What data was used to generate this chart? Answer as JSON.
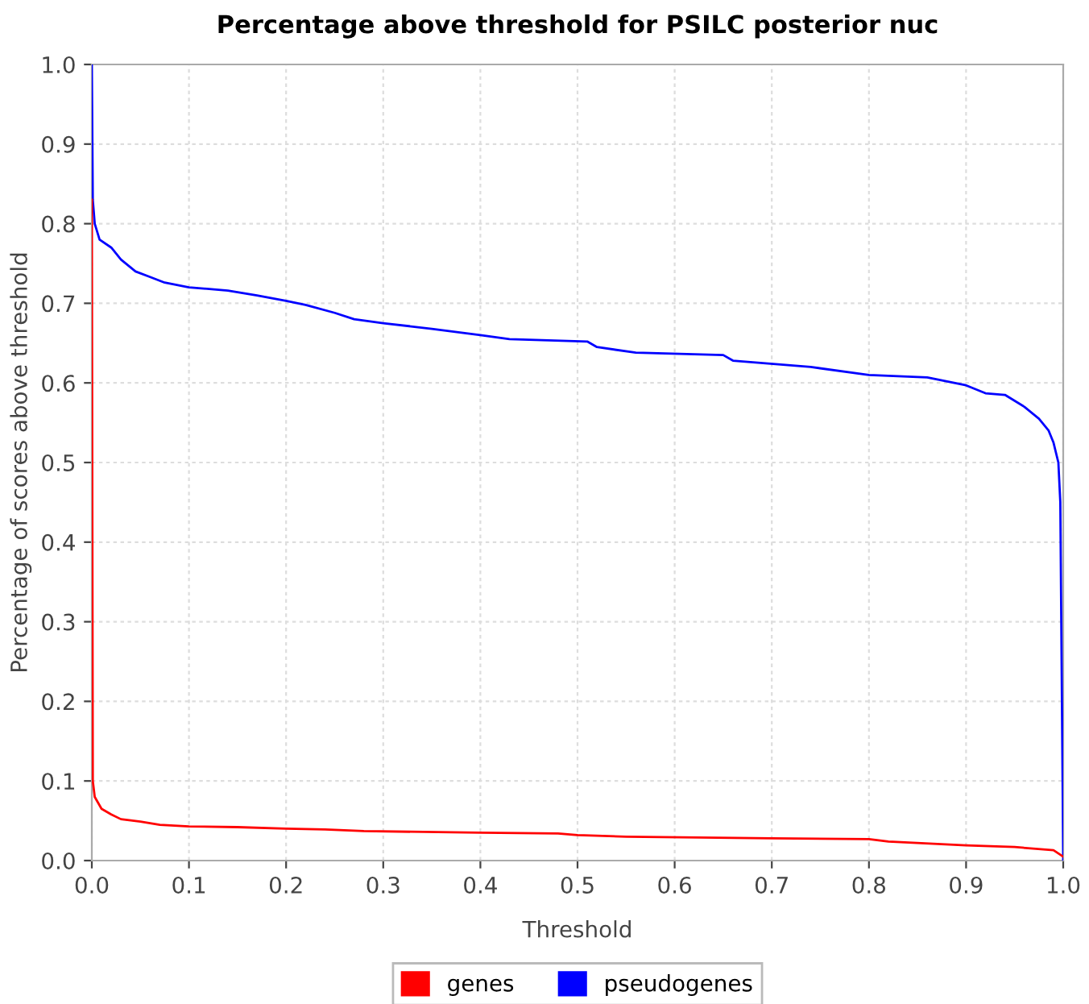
{
  "chart_data": {
    "type": "line",
    "title": "Percentage above threshold for PSILC posterior nuc",
    "xlabel": "Threshold",
    "ylabel": "Percentage of scores above threshold",
    "series": [
      {
        "name": "genes",
        "color": "#ff0000",
        "x": [
          0,
          0.001,
          0.003,
          0.01,
          0.02,
          0.03,
          0.05,
          0.07,
          0.1,
          0.15,
          0.2,
          0.24,
          0.28,
          0.4,
          0.48,
          0.5,
          0.55,
          0.7,
          0.8,
          0.82,
          0.9,
          0.95,
          0.99,
          1.0
        ],
        "values": [
          0.83,
          0.1,
          0.08,
          0.065,
          0.058,
          0.052,
          0.049,
          0.045,
          0.043,
          0.042,
          0.04,
          0.039,
          0.037,
          0.035,
          0.034,
          0.032,
          0.03,
          0.028,
          0.027,
          0.024,
          0.019,
          0.017,
          0.013,
          0.005
        ]
      },
      {
        "name": "pseudogenes",
        "color": "#0000ff",
        "x": [
          0,
          0.001,
          0.003,
          0.008,
          0.02,
          0.03,
          0.045,
          0.06,
          0.075,
          0.1,
          0.14,
          0.17,
          0.2,
          0.22,
          0.25,
          0.27,
          0.3,
          0.35,
          0.4,
          0.43,
          0.51,
          0.52,
          0.56,
          0.65,
          0.66,
          0.74,
          0.8,
          0.86,
          0.9,
          0.92,
          0.94,
          0.96,
          0.975,
          0.985,
          0.99,
          0.995,
          0.997,
          1.0
        ],
        "values": [
          1.0,
          0.83,
          0.8,
          0.78,
          0.77,
          0.755,
          0.74,
          0.733,
          0.726,
          0.72,
          0.716,
          0.71,
          0.703,
          0.698,
          0.688,
          0.68,
          0.675,
          0.668,
          0.66,
          0.655,
          0.652,
          0.645,
          0.638,
          0.635,
          0.628,
          0.62,
          0.61,
          0.607,
          0.597,
          0.587,
          0.585,
          0.57,
          0.555,
          0.54,
          0.525,
          0.5,
          0.45,
          0.0
        ]
      }
    ],
    "xlim": [
      0,
      1
    ],
    "ylim": [
      0,
      1
    ],
    "xticks": [
      {
        "value": 0,
        "label": "0.0"
      },
      0.1,
      0.2,
      0.3,
      0.4,
      0.5,
      0.6,
      0.7,
      0.8,
      0.9,
      {
        "value": 1,
        "label": "1.0"
      }
    ],
    "yticks": [
      {
        "value": 0,
        "label": "0.0"
      },
      0.1,
      0.2,
      0.3,
      0.4,
      0.5,
      0.6,
      0.7,
      0.8,
      0.9,
      {
        "value": 1,
        "label": "1.0"
      }
    ],
    "grid": true,
    "legend": "bottom"
  }
}
